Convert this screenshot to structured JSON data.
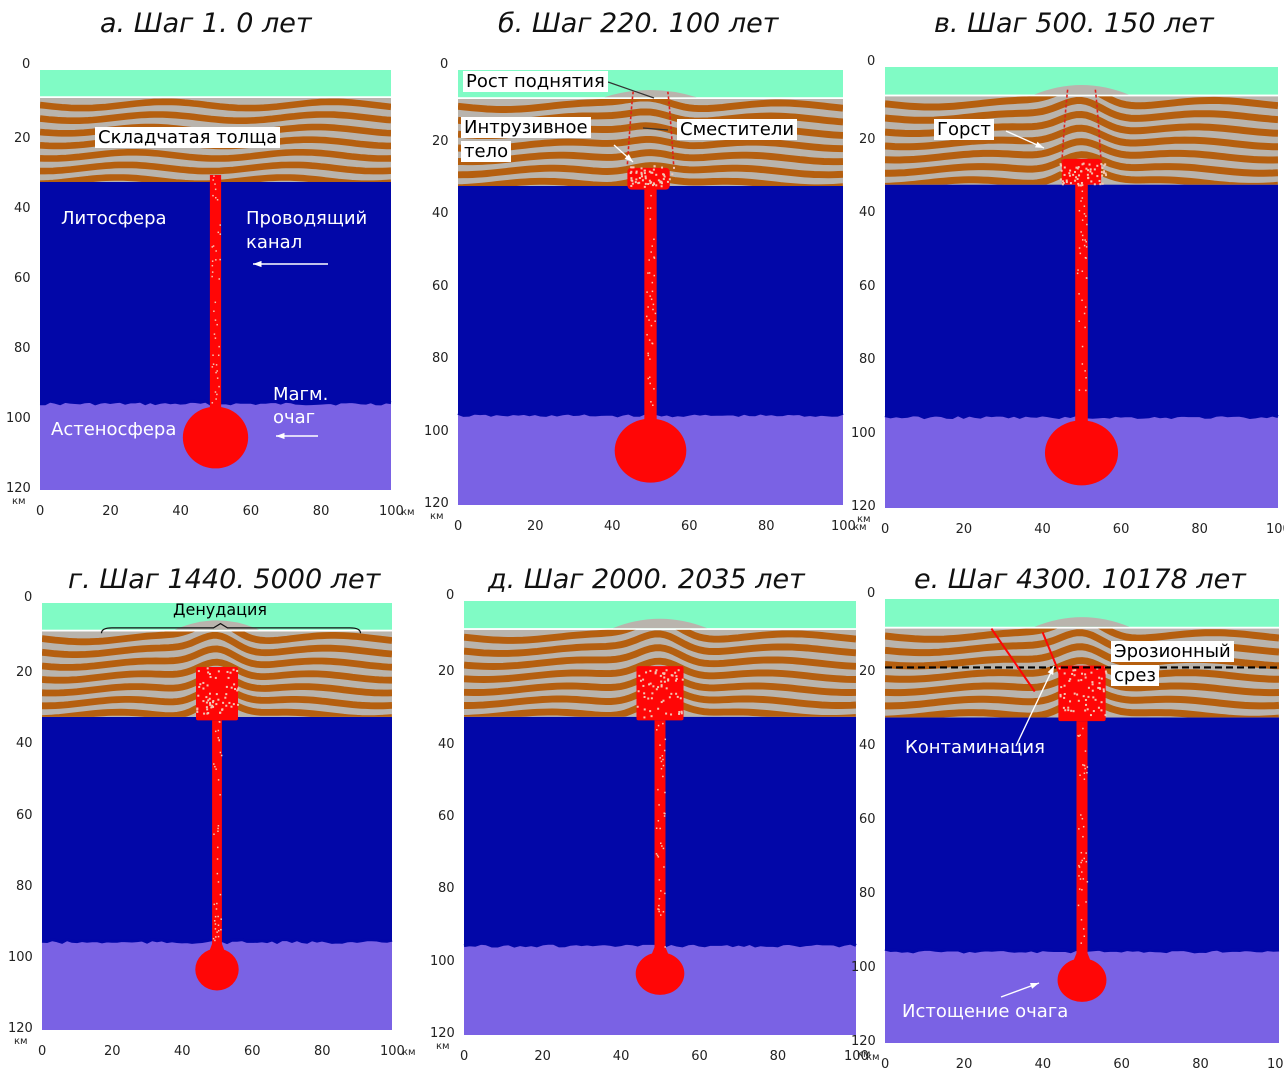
{
  "panels": [
    {
      "title": "а. Шаг 1. 0 лет",
      "y_unit": "км",
      "x_unit": "км",
      "annotations": {
        "folded": "Складчатая толща",
        "litho": "Литосфера",
        "channel_1": "Проводящий",
        "channel_2": "канал",
        "chamber_1": "Магм.",
        "chamber_2": "очаг",
        "astheno": "Астеносфера"
      }
    },
    {
      "title": "б. Шаг 220. 100 лет",
      "y_unit": "км",
      "x_unit": "км",
      "annotations": {
        "uplift": "Рост поднятия",
        "intrusive_1": "Интрузивное",
        "intrusive_2": "тело",
        "faults": "Сместители"
      }
    },
    {
      "title": "в. Шаг 500. 150 лет",
      "y_unit": "км",
      "x_unit": "км",
      "annotations": {
        "horst": "Горст"
      }
    },
    {
      "title": "г. Шаг 1440. 5000 лет",
      "y_unit": "км",
      "x_unit": "км",
      "annotations": {
        "denudation": "Денудация"
      }
    },
    {
      "title": "д. Шаг 2000. 2035 лет",
      "y_unit": "км",
      "x_unit": "км",
      "annotations": {}
    },
    {
      "title": "е. Шаг 4300. 10178 лет",
      "y_unit": "км",
      "x_unit": "км",
      "annotations": {
        "erosion_1": "Эрозионный",
        "erosion_2": "срез",
        "contamination": "Контаминация",
        "depletion": "Истощение очага"
      }
    }
  ],
  "axis": {
    "y_ticks": [
      "0",
      "20",
      "40",
      "60",
      "80",
      "100",
      "120"
    ],
    "x_ticks": [
      "0",
      "20",
      "40",
      "60",
      "80",
      "100"
    ]
  },
  "colors": {
    "sea": "#80fbc5",
    "fold_grey": "#b9b4ad",
    "fold_brown": "#b55f0f",
    "lithosphere": "#0207a8",
    "asthenosphere": "#7a62e4",
    "magma": "#ff0606"
  }
}
